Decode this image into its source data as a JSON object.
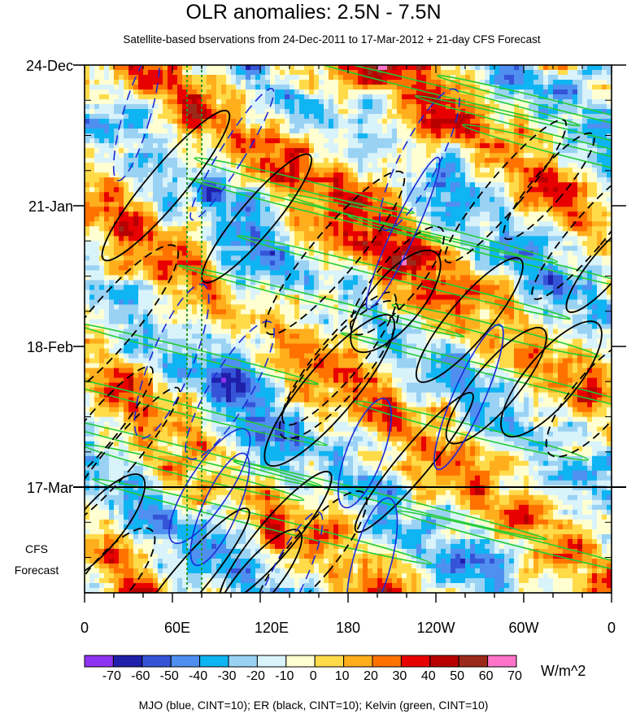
{
  "header": {
    "title": "OLR anomalies: 2.5N - 7.5N",
    "subtitle": "Satellite-based bservations from 24-Dec-2011 to 17-Mar-2012 + 21-day CFS Forecast"
  },
  "forecast_label": [
    "CFS",
    "Forecast"
  ],
  "units": "W/m^2",
  "footer": "MJO (blue, CINT=10); ER (black, CINT=10); Kelvin (green, CINT=10)",
  "colorbar": {
    "colors": [
      "#8f33f2",
      "#1f1faa",
      "#3554d8",
      "#4f8ff0",
      "#0fb4f2",
      "#9ad2f4",
      "#d9f3fb",
      "#ffffd1",
      "#ffdb4a",
      "#ffae1c",
      "#ff7200",
      "#e80000",
      "#b80000",
      "#9b2a1a",
      "#ff73c8"
    ],
    "labels": [
      "-70",
      "-60",
      "-50",
      "-40",
      "-30",
      "-20",
      "-10",
      "0",
      "10",
      "20",
      "30",
      "40",
      "50",
      "60",
      "70"
    ]
  },
  "chart_data": {
    "type": "heatmap",
    "title": "OLR anomalies: 2.5N - 7.5N",
    "subtitle": "Satellite-based bservations from 24-Dec-2011 to 17-Mar-2012 + 21-day CFS Forecast",
    "x_ticks": [
      "0",
      "60E",
      "120E",
      "180",
      "120W",
      "60W",
      "0"
    ],
    "x_range_deg_east": [
      0,
      360
    ],
    "y_ticks": [
      "24-Dec",
      "21-Jan",
      "18-Feb",
      "17-Mar"
    ],
    "y_range": [
      "24-Dec-2011",
      "07-Apr-2012"
    ],
    "observation_end": "17-Mar",
    "forecast_label": "CFS Forecast",
    "units": "W/m^2",
    "color_scale": [
      -70,
      -60,
      -50,
      -40,
      -30,
      -20,
      -10,
      0,
      10,
      20,
      30,
      40,
      50,
      60,
      70
    ],
    "contours": [
      {
        "name": "MJO",
        "color": "blue",
        "cint": 10
      },
      {
        "name": "ER",
        "color": "black",
        "cint": 10
      },
      {
        "name": "Kelvin",
        "color": "green",
        "cint": 10
      }
    ],
    "reference_lines_deg_east": [
      70,
      80
    ]
  }
}
